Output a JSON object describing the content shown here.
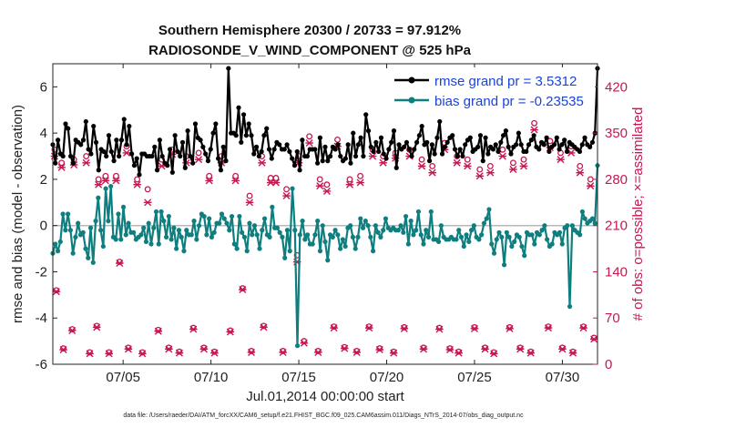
{
  "chart_data": {
    "type": "line",
    "title_line1": "Southern Hemisphere 20300 / 20733 = 97.912%",
    "title_line2": "RADIOSONDE_V_WIND_COMPONENT @ 525 hPa",
    "ylabel": "rmse and bias (model - observation)",
    "y2label": "# of obs: o=possible; ×=assimilated",
    "xlabel": "Jul.01,2014 00:00:00 start",
    "footer": "data file: /Users/raeder/DAI/ATM_forcXX/CAM6_setup/f.e21.FHIST_BGC.f09_025.CAM6assim.011/Diags_NTrS_2014-07/obs_diag_output.nc",
    "xlim": [
      1.0,
      32.0
    ],
    "ylim": [
      -6,
      7
    ],
    "y2lim": [
      0,
      455
    ],
    "x_ticks": [
      5,
      10,
      15,
      20,
      25,
      30
    ],
    "x_tick_labels": [
      "07/05",
      "07/10",
      "07/15",
      "07/20",
      "07/25",
      "07/30"
    ],
    "y_ticks": [
      -6,
      -4,
      -2,
      0,
      2,
      4,
      6
    ],
    "y_tick_labels": [
      "-6",
      "-4",
      "-2",
      "0",
      "2",
      "4",
      "6"
    ],
    "y2_ticks": [
      0,
      70,
      140,
      210,
      280,
      350,
      420
    ],
    "y2_tick_labels": [
      "0",
      "70",
      "140",
      "210",
      "280",
      "350",
      "420"
    ],
    "zero_line": 0,
    "legend_position": "top-right",
    "series": [
      {
        "name": "rmse grand pr = 3.5312",
        "color": "#000000",
        "values": [
          3.5,
          2.7,
          3.7,
          3.1,
          3.0,
          4.4,
          4.2,
          3.0,
          2.7,
          3.7,
          3.6,
          3.5,
          3.7,
          4.5,
          3.3,
          3.1,
          4.3,
          3.6,
          2.4,
          3.3,
          3.2,
          3.0,
          3.9,
          3.2,
          2.8,
          3.7,
          3.0,
          3.7,
          4.6,
          3.5,
          4.3,
          3.1,
          2.6,
          2.9,
          2.2,
          3.1,
          3.1,
          3.0,
          3.0,
          3.0,
          3.4,
          2.4,
          3.7,
          3.0,
          2.7,
          2.6,
          3.3,
          2.3,
          3.9,
          3.2,
          3.0,
          3.6,
          2.5,
          4.1,
          3.0,
          2.7,
          4.4,
          3.8,
          3.7,
          3.4,
          3.1,
          2.8,
          3.3,
          4.0,
          4.4,
          2.9,
          2.4,
          3.4,
          2.8,
          6.8,
          4.0,
          4.0,
          3.9,
          5.1,
          3.6,
          4.8,
          3.9,
          4.4,
          3.9,
          3.1,
          3.4,
          3.0,
          3.2,
          3.9,
          4.2,
          3.3,
          2.9,
          3.3,
          3.6,
          3.5,
          3.3,
          3.3,
          3.5,
          3.2,
          2.9,
          2.6,
          3.2,
          2.4,
          3.7,
          3.0,
          3.0,
          3.3,
          3.3,
          3.3,
          2.7,
          3.8,
          2.8,
          3.4,
          2.8,
          3.0,
          3.4,
          3.3,
          3.5,
          3.0,
          2.8,
          2.9,
          3.5,
          2.7,
          4.0,
          3.0,
          3.5,
          3.8,
          3.0,
          4.8,
          4.1,
          3.4,
          3.2,
          3.6,
          3.2,
          3.8,
          3.1,
          2.9,
          3.3,
          3.6,
          4.1,
          2.5,
          3.5,
          3.3,
          3.4,
          3.6,
          3.3,
          3.0,
          3.3,
          3.6,
          3.9,
          4.3,
          3.5,
          3.6,
          2.8,
          3.5,
          3.1,
          3.8,
          4.5,
          3.1,
          3.4,
          3.6,
          3.8,
          3.9,
          3.3,
          3.0,
          3.3,
          3.0,
          3.5,
          3.7,
          3.8,
          3.2,
          3.3,
          3.4,
          3.9,
          2.8,
          3.8,
          3.1,
          3.4,
          3.3,
          3.5,
          3.2,
          3.6,
          3.9,
          4.1,
          3.4,
          3.1,
          3.4,
          3.5,
          4.0,
          3.5,
          3.2,
          3.2,
          3.5,
          3.7,
          3.9,
          3.4,
          3.3,
          3.6,
          3.5,
          3.8,
          3.2,
          3.4,
          3.5,
          3.8,
          3.3,
          3.5,
          3.7,
          3.2,
          3.6,
          3.5,
          3.4,
          3.3,
          3.2,
          3.5,
          3.8,
          3.5,
          3.4,
          3.6,
          4.0,
          6.8
        ]
      },
      {
        "name": "bias grand pr = -0.23535",
        "color": "#0f7e7e",
        "values": [
          -1.2,
          -0.8,
          -1.1,
          -0.7,
          0.5,
          -0.2,
          0.5,
          -0.2,
          -1.2,
          -0.5,
          0.1,
          -0.4,
          -0.3,
          -1.0,
          -1.4,
          -0.1,
          -1.6,
          0.2,
          1.2,
          -0.2,
          -0.9,
          1.6,
          0.2,
          1.7,
          -0.5,
          -0.6,
          0.5,
          -0.6,
          0.8,
          -0.4,
          0.1,
          -0.3,
          -0.3,
          -0.6,
          -0.5,
          -0.4,
          -0.1,
          -0.7,
          0.1,
          -0.8,
          -0.1,
          0.6,
          -0.8,
          0.6,
          0.2,
          -0.5,
          0.4,
          -0.6,
          -0.1,
          -1.0,
          -0.2,
          -0.5,
          -1.1,
          -0.2,
          -0.4,
          -0.4,
          0.2,
          -0.6,
          0.0,
          0.5,
          0.4,
          -0.4,
          0.3,
          -0.5,
          -0.3,
          0.1,
          0.1,
          0.5,
          0.3,
          0.1,
          -0.2,
          0.4,
          -0.8,
          -1.0,
          0.4,
          -0.3,
          -0.5,
          -1.1,
          0.1,
          -0.4,
          0.0,
          -0.4,
          -1.0,
          -0.2,
          0.3,
          -0.4,
          -0.5,
          0.8,
          -0.1,
          -0.1,
          -0.3,
          -0.5,
          -1.4,
          -0.2,
          -1.1,
          1.6,
          -0.2,
          -5.2,
          -0.4,
          0.2,
          -0.6,
          -0.4,
          -0.8,
          -0.8,
          -0.4,
          0.2,
          -1.1,
          0.0,
          -0.7,
          -1.5,
          -0.4,
          -0.5,
          -0.2,
          -0.4,
          -1.0,
          -0.6,
          -0.9,
          -0.1,
          0.0,
          -0.5,
          -1.0,
          -0.5,
          0.3,
          -0.1,
          0.2,
          0.0,
          -0.5,
          -1.1,
          0.0,
          -0.3,
          -0.5,
          -0.2,
          0.3,
          -0.1,
          -0.2,
          -0.1,
          -0.2,
          -0.2,
          0.0,
          -0.3,
          0.4,
          -0.8,
          0.2,
          -0.4,
          -0.2,
          0.6,
          -0.4,
          -0.8,
          -0.2,
          -0.5,
          0.6,
          -0.6,
          -0.6,
          -0.7,
          0.0,
          -0.5,
          -0.6,
          -0.6,
          -0.5,
          -0.6,
          -0.6,
          -0.2,
          -0.5,
          -0.9,
          -0.4,
          -0.7,
          -0.2,
          0.0,
          -0.5,
          -0.6,
          -0.4,
          0.1,
          0.3,
          0.7,
          -0.8,
          -1.2,
          -0.6,
          -0.3,
          -0.5,
          -1.7,
          -0.3,
          -0.5,
          -0.9,
          -0.7,
          -0.4,
          -0.5,
          -0.9,
          -1.3,
          -0.3,
          -0.4,
          -0.4,
          -0.8,
          -0.3,
          -0.4,
          -0.2,
          0.0,
          -0.6,
          -0.9,
          -0.8,
          -0.3,
          -0.4,
          -0.3,
          -0.8,
          -0.1,
          0.0,
          -3.5,
          0.0,
          -0.2,
          -0.3,
          -0.4,
          0.6,
          0.3,
          0.1,
          0.2,
          0.3,
          0.1,
          2.6
        ]
      }
    ],
    "obs_possible": [
      {
        "x": 1.2,
        "v": 112
      },
      {
        "x": 1.6,
        "v": 24
      },
      {
        "x": 2.1,
        "v": 53
      },
      {
        "x": 3.1,
        "v": 18
      },
      {
        "x": 3.5,
        "v": 58
      },
      {
        "x": 4.2,
        "v": 18
      },
      {
        "x": 4.8,
        "v": 155
      },
      {
        "x": 5.3,
        "v": 25
      },
      {
        "x": 6.1,
        "v": 18
      },
      {
        "x": 7.0,
        "v": 52
      },
      {
        "x": 7.6,
        "v": 25
      },
      {
        "x": 8.2,
        "v": 19
      },
      {
        "x": 9.0,
        "v": 55
      },
      {
        "x": 9.6,
        "v": 25
      },
      {
        "x": 10.2,
        "v": 19
      },
      {
        "x": 11.1,
        "v": 51
      },
      {
        "x": 11.8,
        "v": 115
      },
      {
        "x": 12.3,
        "v": 20
      },
      {
        "x": 13.0,
        "v": 58
      },
      {
        "x": 14.1,
        "v": 20
      },
      {
        "x": 14.9,
        "v": 165
      },
      {
        "x": 15.3,
        "v": 35
      },
      {
        "x": 16.1,
        "v": 20
      },
      {
        "x": 17.0,
        "v": 57
      },
      {
        "x": 17.6,
        "v": 26
      },
      {
        "x": 18.3,
        "v": 20
      },
      {
        "x": 19.0,
        "v": 57
      },
      {
        "x": 19.6,
        "v": 24
      },
      {
        "x": 20.4,
        "v": 19
      },
      {
        "x": 21.0,
        "v": 56
      },
      {
        "x": 22.1,
        "v": 25
      },
      {
        "x": 23.0,
        "v": 55
      },
      {
        "x": 23.6,
        "v": 24
      },
      {
        "x": 24.1,
        "v": 19
      },
      {
        "x": 25.0,
        "v": 56
      },
      {
        "x": 25.6,
        "v": 25
      },
      {
        "x": 26.1,
        "v": 18
      },
      {
        "x": 27.0,
        "v": 56
      },
      {
        "x": 27.6,
        "v": 25
      },
      {
        "x": 28.2,
        "v": 19
      },
      {
        "x": 29.2,
        "v": 57
      },
      {
        "x": 30.0,
        "v": 25
      },
      {
        "x": 30.6,
        "v": 19
      },
      {
        "x": 31.2,
        "v": 57
      },
      {
        "x": 31.8,
        "v": 40
      },
      {
        "x": 1.1,
        "v": 325
      },
      {
        "x": 1.5,
        "v": 305
      },
      {
        "x": 2.2,
        "v": 310
      },
      {
        "x": 2.9,
        "v": 315
      },
      {
        "x": 3.6,
        "v": 280
      },
      {
        "x": 4.0,
        "v": 285
      },
      {
        "x": 4.6,
        "v": 285
      },
      {
        "x": 5.2,
        "v": 330
      },
      {
        "x": 5.8,
        "v": 280
      },
      {
        "x": 6.4,
        "v": 265
      },
      {
        "x": 7.2,
        "v": 310
      },
      {
        "x": 7.8,
        "v": 325
      },
      {
        "x": 8.6,
        "v": 315
      },
      {
        "x": 9.3,
        "v": 320
      },
      {
        "x": 9.9,
        "v": 285
      },
      {
        "x": 10.6,
        "v": 315
      },
      {
        "x": 11.4,
        "v": 285
      },
      {
        "x": 12.2,
        "v": 255
      },
      {
        "x": 12.9,
        "v": 315
      },
      {
        "x": 13.4,
        "v": 282
      },
      {
        "x": 13.7,
        "v": 282
      },
      {
        "x": 14.3,
        "v": 265
      },
      {
        "x": 15.0,
        "v": 315
      },
      {
        "x": 15.6,
        "v": 345
      },
      {
        "x": 16.2,
        "v": 280
      },
      {
        "x": 16.6,
        "v": 272
      },
      {
        "x": 17.2,
        "v": 340
      },
      {
        "x": 17.9,
        "v": 280
      },
      {
        "x": 18.5,
        "v": 285
      },
      {
        "x": 19.2,
        "v": 325
      },
      {
        "x": 19.8,
        "v": 315
      },
      {
        "x": 20.5,
        "v": 320
      },
      {
        "x": 21.3,
        "v": 325
      },
      {
        "x": 22.0,
        "v": 310
      },
      {
        "x": 22.6,
        "v": 300
      },
      {
        "x": 23.3,
        "v": 335
      },
      {
        "x": 24.0,
        "v": 315
      },
      {
        "x": 24.6,
        "v": 310
      },
      {
        "x": 25.3,
        "v": 295
      },
      {
        "x": 25.9,
        "v": 300
      },
      {
        "x": 26.6,
        "v": 325
      },
      {
        "x": 27.2,
        "v": 305
      },
      {
        "x": 27.8,
        "v": 310
      },
      {
        "x": 28.4,
        "v": 365
      },
      {
        "x": 29.3,
        "v": 338
      },
      {
        "x": 29.9,
        "v": 320
      },
      {
        "x": 30.5,
        "v": 330
      },
      {
        "x": 31.0,
        "v": 300
      },
      {
        "x": 31.6,
        "v": 280
      }
    ],
    "obs_assimilated": [
      {
        "x": 1.2,
        "v": 110
      },
      {
        "x": 1.6,
        "v": 22
      },
      {
        "x": 2.1,
        "v": 51
      },
      {
        "x": 3.1,
        "v": 16
      },
      {
        "x": 3.5,
        "v": 56
      },
      {
        "x": 4.2,
        "v": 16
      },
      {
        "x": 4.8,
        "v": 153
      },
      {
        "x": 5.3,
        "v": 23
      },
      {
        "x": 6.1,
        "v": 16
      },
      {
        "x": 7.0,
        "v": 50
      },
      {
        "x": 7.6,
        "v": 23
      },
      {
        "x": 8.2,
        "v": 17
      },
      {
        "x": 9.0,
        "v": 53
      },
      {
        "x": 9.6,
        "v": 23
      },
      {
        "x": 10.2,
        "v": 17
      },
      {
        "x": 11.1,
        "v": 49
      },
      {
        "x": 11.8,
        "v": 113
      },
      {
        "x": 12.3,
        "v": 18
      },
      {
        "x": 13.0,
        "v": 56
      },
      {
        "x": 14.1,
        "v": 18
      },
      {
        "x": 14.9,
        "v": 155
      },
      {
        "x": 15.3,
        "v": 32
      },
      {
        "x": 16.1,
        "v": 18
      },
      {
        "x": 17.0,
        "v": 55
      },
      {
        "x": 17.6,
        "v": 24
      },
      {
        "x": 18.3,
        "v": 18
      },
      {
        "x": 19.0,
        "v": 55
      },
      {
        "x": 19.6,
        "v": 22
      },
      {
        "x": 20.4,
        "v": 17
      },
      {
        "x": 21.0,
        "v": 54
      },
      {
        "x": 22.1,
        "v": 23
      },
      {
        "x": 23.0,
        "v": 53
      },
      {
        "x": 23.6,
        "v": 22
      },
      {
        "x": 24.1,
        "v": 17
      },
      {
        "x": 25.0,
        "v": 54
      },
      {
        "x": 25.6,
        "v": 23
      },
      {
        "x": 26.1,
        "v": 16
      },
      {
        "x": 27.0,
        "v": 54
      },
      {
        "x": 27.6,
        "v": 23
      },
      {
        "x": 28.2,
        "v": 17
      },
      {
        "x": 29.2,
        "v": 55
      },
      {
        "x": 30.0,
        "v": 23
      },
      {
        "x": 30.6,
        "v": 17
      },
      {
        "x": 31.2,
        "v": 55
      },
      {
        "x": 31.8,
        "v": 38
      },
      {
        "x": 1.1,
        "v": 315
      },
      {
        "x": 1.5,
        "v": 298
      },
      {
        "x": 2.2,
        "v": 302
      },
      {
        "x": 2.9,
        "v": 305
      },
      {
        "x": 3.6,
        "v": 272
      },
      {
        "x": 4.0,
        "v": 278
      },
      {
        "x": 4.6,
        "v": 278
      },
      {
        "x": 5.2,
        "v": 320
      },
      {
        "x": 5.8,
        "v": 272
      },
      {
        "x": 6.4,
        "v": 245
      },
      {
        "x": 7.2,
        "v": 300
      },
      {
        "x": 7.8,
        "v": 318
      },
      {
        "x": 8.6,
        "v": 305
      },
      {
        "x": 9.3,
        "v": 310
      },
      {
        "x": 9.9,
        "v": 278
      },
      {
        "x": 10.6,
        "v": 305
      },
      {
        "x": 11.4,
        "v": 278
      },
      {
        "x": 12.2,
        "v": 245
      },
      {
        "x": 12.9,
        "v": 305
      },
      {
        "x": 13.4,
        "v": 275
      },
      {
        "x": 13.7,
        "v": 275
      },
      {
        "x": 14.3,
        "v": 255
      },
      {
        "x": 15.0,
        "v": 305
      },
      {
        "x": 15.6,
        "v": 335
      },
      {
        "x": 16.2,
        "v": 270
      },
      {
        "x": 16.6,
        "v": 262
      },
      {
        "x": 17.2,
        "v": 330
      },
      {
        "x": 17.9,
        "v": 272
      },
      {
        "x": 18.5,
        "v": 275
      },
      {
        "x": 19.2,
        "v": 315
      },
      {
        "x": 19.8,
        "v": 305
      },
      {
        "x": 20.5,
        "v": 312
      },
      {
        "x": 21.3,
        "v": 315
      },
      {
        "x": 22.0,
        "v": 300
      },
      {
        "x": 22.6,
        "v": 290
      },
      {
        "x": 23.3,
        "v": 325
      },
      {
        "x": 24.0,
        "v": 305
      },
      {
        "x": 24.6,
        "v": 300
      },
      {
        "x": 25.3,
        "v": 285
      },
      {
        "x": 25.9,
        "v": 290
      },
      {
        "x": 26.6,
        "v": 315
      },
      {
        "x": 27.2,
        "v": 295
      },
      {
        "x": 27.8,
        "v": 300
      },
      {
        "x": 28.4,
        "v": 355
      },
      {
        "x": 29.3,
        "v": 328
      },
      {
        "x": 29.9,
        "v": 310
      },
      {
        "x": 30.5,
        "v": 320
      },
      {
        "x": 31.0,
        "v": 290
      },
      {
        "x": 31.6,
        "v": 270
      }
    ]
  },
  "colors": {
    "rmse": "#000000",
    "bias": "#0f7e7e",
    "obs": "#c8174e",
    "legend_text": "#1a44d8",
    "zero_line": "#b8b8b8"
  }
}
